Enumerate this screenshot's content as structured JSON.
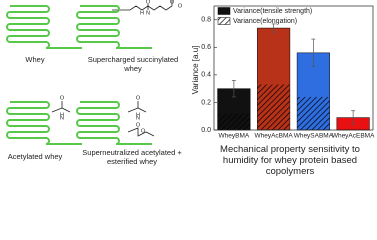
{
  "proteins": [
    "Whey",
    "Supercharged succinylated whey",
    "Acetylated whey",
    "Superneutralized acetylated + esterified whey"
  ],
  "atoms": [
    "H",
    "N",
    "O",
    "O",
    "O",
    "H",
    "N",
    "O",
    "H",
    "N",
    "O",
    "O",
    "O"
  ],
  "chart_data": {
    "type": "bar",
    "title": "Mechanical property sensitivity to humidity for whey protein based copolymers",
    "y_label": "Variance [a.u]",
    "categories": [
      "WheyBMA",
      "WheyAcBMA",
      "WheySABMA",
      "WheyAcEBMA"
    ],
    "colors": [
      "#111111",
      "#b8321a",
      "#2f6ee0",
      "#e81010"
    ],
    "series": [
      {
        "name": "Variance(tensile strength)",
        "color": "#111111",
        "values": [
          0.3,
          0.74,
          0.56,
          0.09
        ],
        "errors": [
          0.06,
          0.03,
          0.1,
          0.05
        ]
      },
      {
        "name": "Variance(elongation)",
        "color": "#000000",
        "hatch": true,
        "values": [
          0.12,
          0.33,
          0.24,
          0.0
        ]
      }
    ],
    "ylim": [
      0,
      0.9
    ],
    "yticks": [
      {
        "value": 0,
        "label": "0.0"
      },
      0.2,
      0.4,
      0.6,
      0.8
    ],
    "legend": "upper left"
  }
}
